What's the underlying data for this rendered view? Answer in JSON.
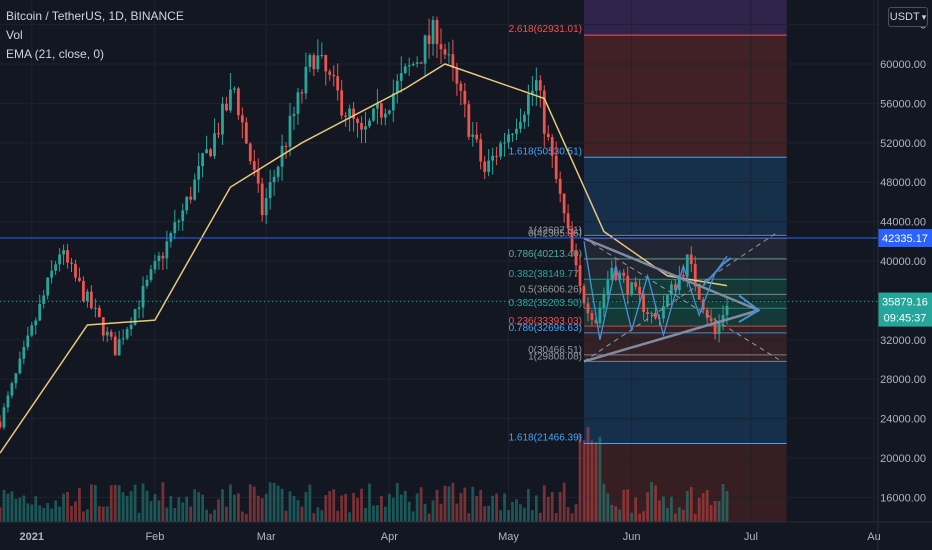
{
  "legend": {
    "symbol": "Bitcoin / TetherUS, 1D, BINANCE",
    "volume": "Vol",
    "ema": "EMA (21, close, 0)"
  },
  "currency": {
    "label": "USDT"
  },
  "colors": {
    "background": "#131722",
    "up": "#26a69a",
    "down": "#ef5350",
    "ema": "#e8c97a",
    "hline": "#2962ff",
    "last_price": "#26a69a",
    "triangle": "#4a8fd6"
  },
  "chart_data": {
    "type": "candlestick",
    "y_axis": {
      "ticks": [
        "16000.00",
        "20000.00",
        "24000.00",
        "28000.00",
        "32000.00",
        "36000.00",
        "40000.00",
        "44000.00",
        "48000.00",
        "52000.00",
        "56000.00",
        "60000.00",
        "6"
      ],
      "tick_values": [
        16000,
        20000,
        24000,
        28000,
        32000,
        36000,
        40000,
        44000,
        48000,
        52000,
        56000,
        60000,
        64000
      ],
      "range": [
        13500,
        66500
      ]
    },
    "x_axis": {
      "labels": [
        "2021",
        "Feb",
        "Mar",
        "Apr",
        "May",
        "Jun",
        "Jul",
        "Au"
      ],
      "dates": [
        "2021-01-01",
        "2021-02-01",
        "2021-03-01",
        "2021-04-01",
        "2021-05-01",
        "2021-06-01",
        "2021-07-01",
        "2021-08-01"
      ],
      "range": [
        "2020-12-24",
        "2021-08-02"
      ]
    },
    "key_prices": [
      {
        "date": "2020-12-24",
        "price": 23700
      },
      {
        "date": "2021-01-08",
        "price": 41000
      },
      {
        "date": "2021-01-22",
        "price": 31000
      },
      {
        "date": "2021-02-08",
        "price": 45000
      },
      {
        "date": "2021-02-21",
        "price": 57500
      },
      {
        "date": "2021-02-28",
        "price": 45000
      },
      {
        "date": "2021-03-13",
        "price": 61000
      },
      {
        "date": "2021-03-25",
        "price": 52500
      },
      {
        "date": "2021-04-13",
        "price": 63500
      },
      {
        "date": "2021-04-25",
        "price": 49000
      },
      {
        "date": "2021-05-08",
        "price": 58000
      },
      {
        "date": "2021-05-12",
        "price": 50000
      },
      {
        "date": "2021-05-19",
        "price": 37000
      },
      {
        "date": "2021-05-23",
        "price": 34000
      },
      {
        "date": "2021-05-27",
        "price": 39500
      },
      {
        "date": "2021-06-07",
        "price": 34000
      },
      {
        "date": "2021-06-15",
        "price": 40000
      },
      {
        "date": "2021-06-22",
        "price": 32500
      },
      {
        "date": "2021-06-25",
        "price": 35900
      }
    ],
    "ema_key_prices": [
      {
        "date": "2020-12-24",
        "price": 20500
      },
      {
        "date": "2021-01-15",
        "price": 33500
      },
      {
        "date": "2021-02-01",
        "price": 34000
      },
      {
        "date": "2021-02-20",
        "price": 47500
      },
      {
        "date": "2021-03-10",
        "price": 52000
      },
      {
        "date": "2021-04-05",
        "price": 57500
      },
      {
        "date": "2021-04-15",
        "price": 60000
      },
      {
        "date": "2021-05-10",
        "price": 56500
      },
      {
        "date": "2021-05-25",
        "price": 43000
      },
      {
        "date": "2021-06-10",
        "price": 38500
      },
      {
        "date": "2021-06-25",
        "price": 37500
      }
    ],
    "horizontal_line": {
      "price": 42335.17,
      "label": "42335.17"
    },
    "last_price": {
      "price": 35879.16,
      "label": "35879.16",
      "countdown": "09:45:37"
    },
    "fibonacci_extension": {
      "start": "2021-05-20",
      "end": "2021-07-10",
      "levels": [
        {
          "label": "2.618(62931.01)",
          "price": 62931.01,
          "color": "#f05350"
        },
        {
          "label": "1.618(50530.51)",
          "price": 50530.51,
          "color": "#42a5f5"
        },
        {
          "label": "1.618(21466.39)",
          "price": 21466.39,
          "color": "#42a5f5"
        }
      ],
      "upper_zone_top": 66500,
      "upper_zone_bottom": 50530.51,
      "lower_zone_top": 29808.08,
      "lower_zone_bottom": 13500
    },
    "fibonacci_retracement": {
      "start": "2021-05-20",
      "end": "2021-07-10",
      "levels": [
        {
          "label": "0(42305.96)",
          "price": 42305.96,
          "color": "#9598a1"
        },
        {
          "label": "1(42607.51)",
          "price": 42607.51,
          "color": "#9598a1"
        },
        {
          "label": "0.786(40213.40)",
          "price": 40213.4,
          "color": "#f05350"
        },
        {
          "label": "0.786(40213.40)",
          "price": 40213.4,
          "color": "#26a69a"
        },
        {
          "label": "0.382(38149.77)",
          "price": 38149.77,
          "color": "#26a69a"
        },
        {
          "label": "0.5(36606.26)",
          "price": 36606.26,
          "color": "#9598a1"
        },
        {
          "label": "0.382(35203.50)",
          "price": 35203.5,
          "color": "#26a69a"
        },
        {
          "label": "0.236(33393.03)",
          "price": 33393.03,
          "color": "#f05350"
        },
        {
          "label": "0.786(32696.63)",
          "price": 32696.63,
          "color": "#42a5f5"
        },
        {
          "label": "0(30466.51)",
          "price": 30466.51,
          "color": "#9598a1"
        },
        {
          "label": "1(29808.08)",
          "price": 29808.08,
          "color": "#9598a1"
        }
      ]
    },
    "triangle": {
      "apex": {
        "date": "2021-07-03",
        "price": 35000
      },
      "upper_start": {
        "date": "2021-05-20",
        "price": 42300
      },
      "lower_start": {
        "date": "2021-05-20",
        "price": 29800
      }
    },
    "volume_note": "relative volume bars, scale not printed"
  }
}
